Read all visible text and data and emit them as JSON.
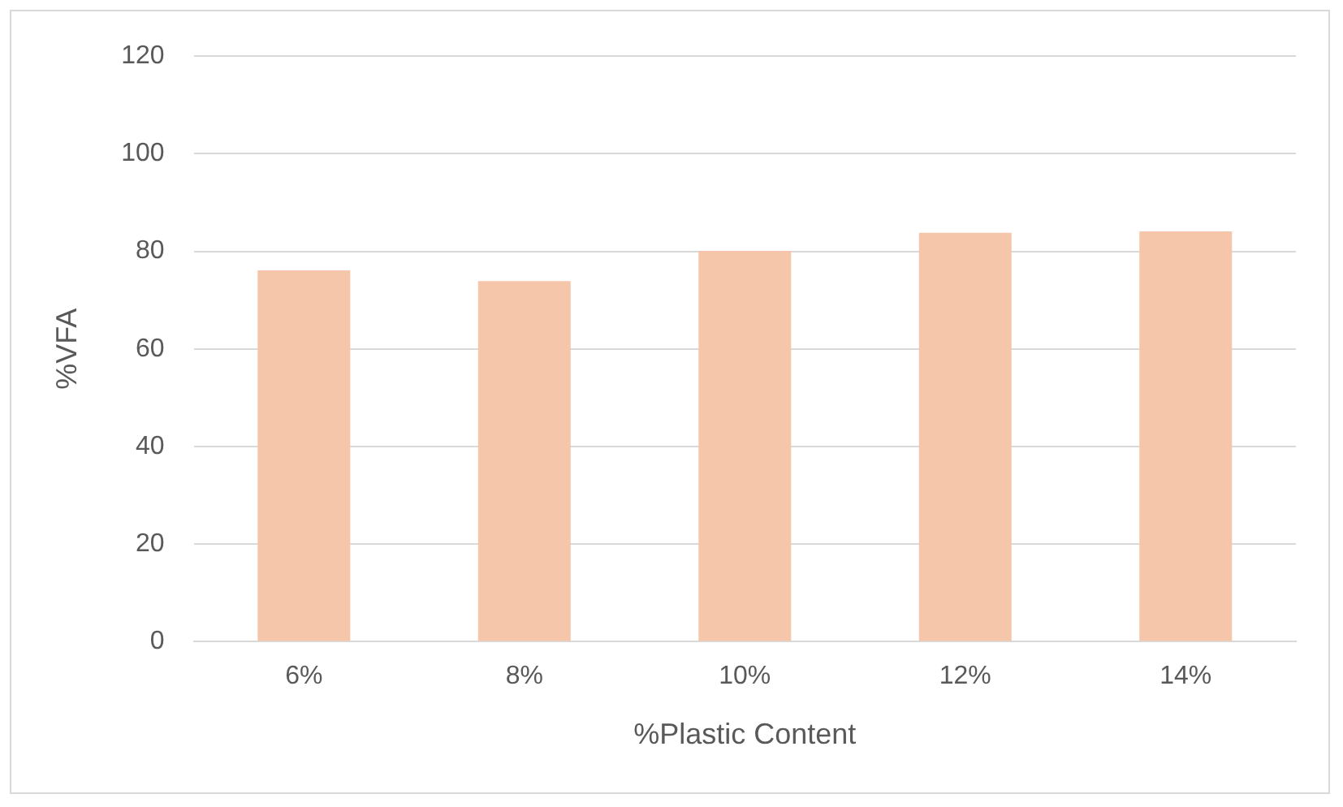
{
  "chart_data": {
    "type": "bar",
    "xlabel": "%Plastic Content",
    "ylabel": "%VFA",
    "categories": [
      "6%",
      "8%",
      "10%",
      "12%",
      "14%"
    ],
    "series": [
      {
        "color": "#f5c6aa",
        "values": [
          76.1,
          73.9,
          80.1,
          83.8,
          84.1
        ]
      }
    ],
    "ylim": [
      0,
      120
    ],
    "yticks": [
      0,
      20,
      40,
      60,
      80,
      100,
      120
    ],
    "grid": "y",
    "legend": false
  }
}
